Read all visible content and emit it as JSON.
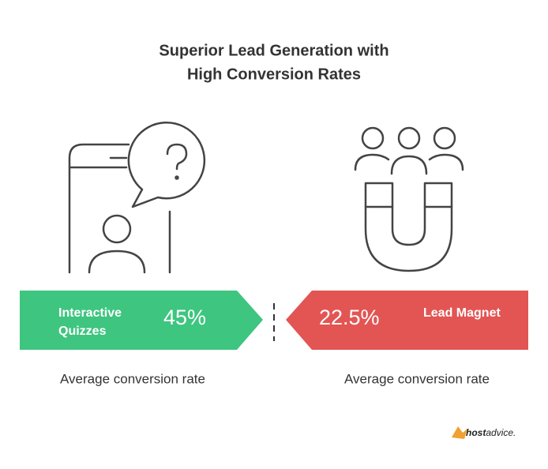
{
  "title": [
    "Superior Lead Generation with",
    "High Conversion Rates"
  ],
  "items": [
    {
      "label": [
        "Interactive",
        "Quizzes"
      ],
      "value": "45%",
      "caption": "Average conversion rate"
    },
    {
      "label": [
        "Lead Magnet"
      ],
      "value": "22.5%",
      "caption": "Average conversion rate"
    }
  ],
  "brand": {
    "bold": "host",
    "rest": "advice."
  }
}
